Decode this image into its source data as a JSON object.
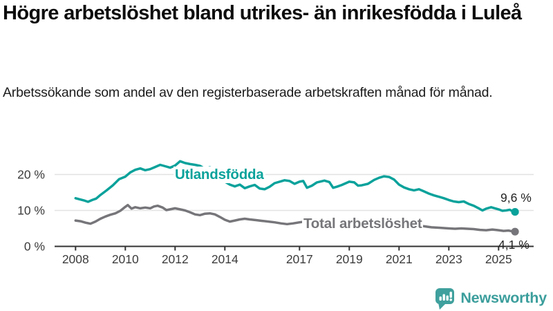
{
  "header": {
    "title": "Högre arbetslöshet bland utrikes- än inrikesfödda i Luleå",
    "subtitle": "Arbetssökande som andel av den registerbaserade arbetskraften månad för månad."
  },
  "chart_data": {
    "type": "line",
    "title": "Högre arbetslöshet bland utrikes- än inrikesfödda i Luleå",
    "subtitle": "Arbetssökande som andel av den registerbaserade arbetskraften månad för månad.",
    "unit": "%",
    "xlim": [
      2007.15,
      2026.4
    ],
    "ylim": [
      0,
      27
    ],
    "grid": "horizontal",
    "legend_position": "inline-labels",
    "x_ticks": [
      {
        "year": 2008,
        "label": "2008"
      },
      {
        "year": 2010,
        "label": "2010"
      },
      {
        "year": 2012,
        "label": "2012"
      },
      {
        "year": 2014,
        "label": "2014"
      },
      {
        "year": 2017,
        "label": "2017"
      },
      {
        "year": 2019,
        "label": "2019"
      },
      {
        "year": 2021,
        "label": "2021"
      },
      {
        "year": 2023,
        "label": "2023"
      },
      {
        "year": 2025,
        "label": "2025"
      }
    ],
    "y_ticks": [
      {
        "value": 0,
        "label": "0 %"
      },
      {
        "value": 10,
        "label": "10 %"
      },
      {
        "value": 20,
        "label": "20 %"
      }
    ],
    "series": [
      {
        "name": "Utlandsfödda",
        "color": "#0aa29b",
        "end_value": 9.6,
        "end_label": "9,6 %",
        "points": [
          [
            2008.0,
            13.4
          ],
          [
            2008.17,
            13.1
          ],
          [
            2008.33,
            12.8
          ],
          [
            2008.5,
            12.4
          ],
          [
            2008.67,
            12.9
          ],
          [
            2008.83,
            13.3
          ],
          [
            2009.0,
            14.3
          ],
          [
            2009.25,
            15.6
          ],
          [
            2009.5,
            17.0
          ],
          [
            2009.75,
            18.7
          ],
          [
            2010.0,
            19.4
          ],
          [
            2010.2,
            20.6
          ],
          [
            2010.4,
            21.3
          ],
          [
            2010.6,
            21.7
          ],
          [
            2010.8,
            21.2
          ],
          [
            2011.0,
            21.5
          ],
          [
            2011.2,
            22.1
          ],
          [
            2011.4,
            22.7
          ],
          [
            2011.6,
            22.3
          ],
          [
            2011.8,
            21.9
          ],
          [
            2012.0,
            22.5
          ],
          [
            2012.2,
            23.7
          ],
          [
            2012.4,
            23.2
          ],
          [
            2012.6,
            22.9
          ],
          [
            2012.8,
            22.7
          ],
          [
            2013.0,
            22.4
          ],
          [
            2013.2,
            21.6
          ],
          [
            2013.4,
            22.0
          ],
          [
            2013.6,
            20.6
          ],
          [
            2013.8,
            19.2
          ],
          [
            2014.0,
            18.0
          ],
          [
            2014.2,
            17.2
          ],
          [
            2014.4,
            16.7
          ],
          [
            2014.6,
            17.2
          ],
          [
            2014.8,
            16.2
          ],
          [
            2015.0,
            16.7
          ],
          [
            2015.2,
            17.1
          ],
          [
            2015.4,
            16.1
          ],
          [
            2015.6,
            15.9
          ],
          [
            2015.8,
            16.6
          ],
          [
            2016.0,
            17.6
          ],
          [
            2016.2,
            18.0
          ],
          [
            2016.4,
            18.4
          ],
          [
            2016.6,
            18.2
          ],
          [
            2016.8,
            17.4
          ],
          [
            2017.0,
            18.0
          ],
          [
            2017.15,
            18.2
          ],
          [
            2017.3,
            16.3
          ],
          [
            2017.5,
            16.9
          ],
          [
            2017.7,
            17.8
          ],
          [
            2018.0,
            18.3
          ],
          [
            2018.2,
            17.9
          ],
          [
            2018.35,
            16.3
          ],
          [
            2018.5,
            16.6
          ],
          [
            2018.7,
            17.1
          ],
          [
            2019.0,
            18.0
          ],
          [
            2019.2,
            17.8
          ],
          [
            2019.35,
            16.9
          ],
          [
            2019.5,
            17.0
          ],
          [
            2019.75,
            17.4
          ],
          [
            2020.0,
            18.5
          ],
          [
            2020.2,
            19.1
          ],
          [
            2020.4,
            19.5
          ],
          [
            2020.6,
            19.3
          ],
          [
            2020.8,
            18.6
          ],
          [
            2021.0,
            17.2
          ],
          [
            2021.2,
            16.4
          ],
          [
            2021.4,
            15.9
          ],
          [
            2021.6,
            15.6
          ],
          [
            2021.8,
            15.9
          ],
          [
            2022.0,
            15.3
          ],
          [
            2022.2,
            14.7
          ],
          [
            2022.4,
            14.2
          ],
          [
            2022.6,
            13.8
          ],
          [
            2022.8,
            13.4
          ],
          [
            2023.0,
            12.9
          ],
          [
            2023.2,
            12.5
          ],
          [
            2023.4,
            12.3
          ],
          [
            2023.6,
            12.5
          ],
          [
            2023.8,
            11.8
          ],
          [
            2024.0,
            11.3
          ],
          [
            2024.2,
            10.6
          ],
          [
            2024.35,
            10.0
          ],
          [
            2024.5,
            10.5
          ],
          [
            2024.7,
            10.9
          ],
          [
            2024.85,
            10.6
          ],
          [
            2025.0,
            10.3
          ],
          [
            2025.15,
            9.9
          ],
          [
            2025.3,
            10.0
          ],
          [
            2025.45,
            10.2
          ],
          [
            2025.55,
            9.8
          ],
          [
            2025.66,
            9.6
          ]
        ]
      },
      {
        "name": "Total arbetslöshet",
        "color": "#76767a",
        "end_value": 4.1,
        "end_label": "4,1 %",
        "points": [
          [
            2008.0,
            7.2
          ],
          [
            2008.2,
            7.0
          ],
          [
            2008.4,
            6.6
          ],
          [
            2008.6,
            6.3
          ],
          [
            2008.8,
            6.9
          ],
          [
            2009.0,
            7.7
          ],
          [
            2009.2,
            8.3
          ],
          [
            2009.4,
            8.8
          ],
          [
            2009.6,
            9.2
          ],
          [
            2009.8,
            9.9
          ],
          [
            2010.0,
            11.0
          ],
          [
            2010.1,
            11.5
          ],
          [
            2010.25,
            10.5
          ],
          [
            2010.4,
            10.9
          ],
          [
            2010.6,
            10.6
          ],
          [
            2010.8,
            10.8
          ],
          [
            2011.0,
            10.6
          ],
          [
            2011.15,
            11.1
          ],
          [
            2011.3,
            11.3
          ],
          [
            2011.5,
            10.8
          ],
          [
            2011.65,
            10.1
          ],
          [
            2011.8,
            10.3
          ],
          [
            2012.0,
            10.6
          ],
          [
            2012.2,
            10.3
          ],
          [
            2012.4,
            10.0
          ],
          [
            2012.6,
            9.5
          ],
          [
            2012.8,
            8.9
          ],
          [
            2013.0,
            8.7
          ],
          [
            2013.2,
            9.1
          ],
          [
            2013.4,
            9.2
          ],
          [
            2013.6,
            8.9
          ],
          [
            2013.8,
            8.2
          ],
          [
            2014.0,
            7.4
          ],
          [
            2014.2,
            6.9
          ],
          [
            2014.4,
            7.2
          ],
          [
            2014.6,
            7.5
          ],
          [
            2014.8,
            7.7
          ],
          [
            2015.0,
            7.5
          ],
          [
            2015.25,
            7.3
          ],
          [
            2015.5,
            7.1
          ],
          [
            2015.75,
            6.9
          ],
          [
            2016.0,
            6.7
          ],
          [
            2016.25,
            6.4
          ],
          [
            2016.5,
            6.2
          ],
          [
            2016.75,
            6.4
          ],
          [
            2017.0,
            6.7
          ],
          [
            2017.3,
            7.0
          ],
          [
            2017.6,
            6.8
          ],
          [
            2018.0,
            6.6
          ],
          [
            2018.5,
            6.3
          ],
          [
            2019.0,
            6.2
          ],
          [
            2019.5,
            6.1
          ],
          [
            2020.0,
            6.5
          ],
          [
            2020.3,
            7.1
          ],
          [
            2020.6,
            6.9
          ],
          [
            2021.0,
            6.4
          ],
          [
            2021.5,
            5.9
          ],
          [
            2022.0,
            5.6
          ],
          [
            2022.3,
            5.3
          ],
          [
            2022.6,
            5.2
          ],
          [
            2022.8,
            5.1
          ],
          [
            2023.0,
            5.0
          ],
          [
            2023.25,
            4.9
          ],
          [
            2023.5,
            5.0
          ],
          [
            2023.75,
            4.9
          ],
          [
            2024.0,
            4.8
          ],
          [
            2024.25,
            4.6
          ],
          [
            2024.5,
            4.5
          ],
          [
            2024.75,
            4.7
          ],
          [
            2025.0,
            4.5
          ],
          [
            2025.2,
            4.3
          ],
          [
            2025.4,
            4.4
          ],
          [
            2025.55,
            4.2
          ],
          [
            2025.66,
            4.1
          ]
        ]
      }
    ]
  },
  "colors": {
    "accent_teal": "#0aa29b",
    "series_gray": "#76767a",
    "grid": "#e2e2e2",
    "axis": "#333333",
    "brand_teal": "#3fa09d"
  },
  "footer": {
    "brand": "Newsworthy"
  }
}
